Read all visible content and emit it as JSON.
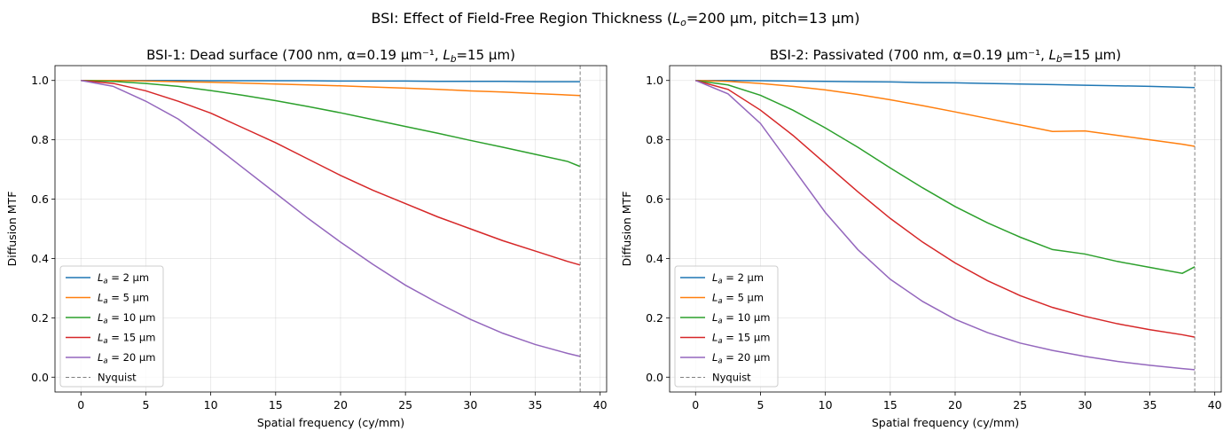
{
  "figure": {
    "suptitle_parts": [
      "BSI: Effect of Field-Free Region Thickness (",
      "L",
      "o",
      "=200 µm, pitch=13 µm)"
    ]
  },
  "chart_data": [
    {
      "type": "line",
      "title_parts": [
        "BSI-1: Dead surface (700 nm, α=0.19 µm⁻¹, ",
        "L",
        "b",
        "=15 µm)"
      ],
      "xlabel": "Spatial frequency (cy/mm)",
      "ylabel": "Diffusion MTF",
      "xlim": [
        -2,
        40.5
      ],
      "ylim": [
        -0.05,
        1.05
      ],
      "xticks": [
        0,
        5,
        10,
        15,
        20,
        25,
        30,
        35,
        40
      ],
      "yticks": [
        0.0,
        0.2,
        0.4,
        0.6,
        0.8,
        1.0
      ],
      "grid": true,
      "legend_position": "lower-left",
      "nyquist": {
        "x": 38.46,
        "label": "Nyquist",
        "color": "#808080"
      },
      "x": [
        0,
        2.5,
        5,
        7.5,
        10,
        12.5,
        15,
        17.5,
        20,
        22.5,
        25,
        27.5,
        30,
        32.5,
        35,
        37.5,
        38.46
      ],
      "series": [
        {
          "name_parts": [
            "L",
            "a",
            " = 2 µm"
          ],
          "color": "#1f77b4",
          "values": [
            1.0,
            1.0,
            1.0,
            1.0,
            0.999,
            0.999,
            0.999,
            0.999,
            0.998,
            0.998,
            0.998,
            0.997,
            0.997,
            0.997,
            0.996,
            0.996,
            0.996
          ]
        },
        {
          "name_parts": [
            "L",
            "a",
            " = 5 µm"
          ],
          "color": "#ff7f0e",
          "values": [
            1.0,
            1.0,
            0.998,
            0.996,
            0.994,
            0.991,
            0.988,
            0.985,
            0.982,
            0.978,
            0.974,
            0.97,
            0.965,
            0.961,
            0.956,
            0.951,
            0.949
          ]
        },
        {
          "name_parts": [
            "L",
            "a",
            " = 10 µm"
          ],
          "color": "#2ca02c",
          "values": [
            1.0,
            0.997,
            0.99,
            0.98,
            0.966,
            0.95,
            0.932,
            0.912,
            0.891,
            0.868,
            0.845,
            0.822,
            0.798,
            0.775,
            0.751,
            0.727,
            0.71
          ]
        },
        {
          "name_parts": [
            "L",
            "a",
            " = 15 µm"
          ],
          "color": "#d62728",
          "values": [
            1.0,
            0.99,
            0.965,
            0.93,
            0.89,
            0.84,
            0.79,
            0.735,
            0.68,
            0.63,
            0.585,
            0.54,
            0.5,
            0.46,
            0.425,
            0.39,
            0.378
          ]
        },
        {
          "name_parts": [
            "L",
            "a",
            " = 20 µm"
          ],
          "color": "#9467bd",
          "values": [
            1.0,
            0.98,
            0.93,
            0.87,
            0.79,
            0.705,
            0.62,
            0.535,
            0.455,
            0.38,
            0.31,
            0.25,
            0.195,
            0.148,
            0.11,
            0.08,
            0.07
          ]
        }
      ]
    },
    {
      "type": "line",
      "title_parts": [
        "BSI-2: Passivated (700 nm, α=0.19 µm⁻¹, ",
        "L",
        "b",
        "=15 µm)"
      ],
      "xlabel": "Spatial frequency (cy/mm)",
      "ylabel": "Diffusion MTF",
      "xlim": [
        -2,
        40.5
      ],
      "ylim": [
        -0.05,
        1.05
      ],
      "xticks": [
        0,
        5,
        10,
        15,
        20,
        25,
        30,
        35,
        40
      ],
      "yticks": [
        0.0,
        0.2,
        0.4,
        0.6,
        0.8,
        1.0
      ],
      "grid": true,
      "legend_position": "lower-left",
      "nyquist": {
        "x": 38.46,
        "label": "Nyquist",
        "color": "#808080"
      },
      "x": [
        0,
        2.5,
        5,
        7.5,
        10,
        12.5,
        15,
        17.5,
        20,
        22.5,
        25,
        27.5,
        30,
        32.5,
        35,
        37.5,
        38.46
      ],
      "series": [
        {
          "name_parts": [
            "L",
            "a",
            " = 2 µm"
          ],
          "color": "#1f77b4",
          "values": [
            1.0,
            1.0,
            0.999,
            0.998,
            0.997,
            0.996,
            0.995,
            0.993,
            0.992,
            0.99,
            0.988,
            0.986,
            0.984,
            0.982,
            0.98,
            0.977,
            0.976
          ]
        },
        {
          "name_parts": [
            "L",
            "a",
            " = 5 µm"
          ],
          "color": "#ff7f0e",
          "values": [
            1.0,
            0.997,
            0.99,
            0.98,
            0.968,
            0.953,
            0.935,
            0.915,
            0.894,
            0.872,
            0.85,
            0.828,
            0.83,
            0.815,
            0.8,
            0.785,
            0.778
          ]
        },
        {
          "name_parts": [
            "L",
            "a",
            " = 10 µm"
          ],
          "color": "#2ca02c",
          "values": [
            1.0,
            0.985,
            0.95,
            0.9,
            0.84,
            0.775,
            0.705,
            0.638,
            0.575,
            0.52,
            0.472,
            0.43,
            0.415,
            0.39,
            0.37,
            0.35,
            0.372
          ]
        },
        {
          "name_parts": [
            "L",
            "a",
            " = 15 µm"
          ],
          "color": "#d62728",
          "values": [
            1.0,
            0.97,
            0.9,
            0.815,
            0.72,
            0.625,
            0.535,
            0.455,
            0.385,
            0.325,
            0.275,
            0.235,
            0.205,
            0.18,
            0.16,
            0.143,
            0.135
          ]
        },
        {
          "name_parts": [
            "L",
            "a",
            " = 20 µm"
          ],
          "color": "#9467bd",
          "values": [
            1.0,
            0.955,
            0.855,
            0.705,
            0.555,
            0.43,
            0.33,
            0.255,
            0.195,
            0.15,
            0.115,
            0.09,
            0.07,
            0.053,
            0.04,
            0.029,
            0.025
          ]
        }
      ]
    }
  ]
}
